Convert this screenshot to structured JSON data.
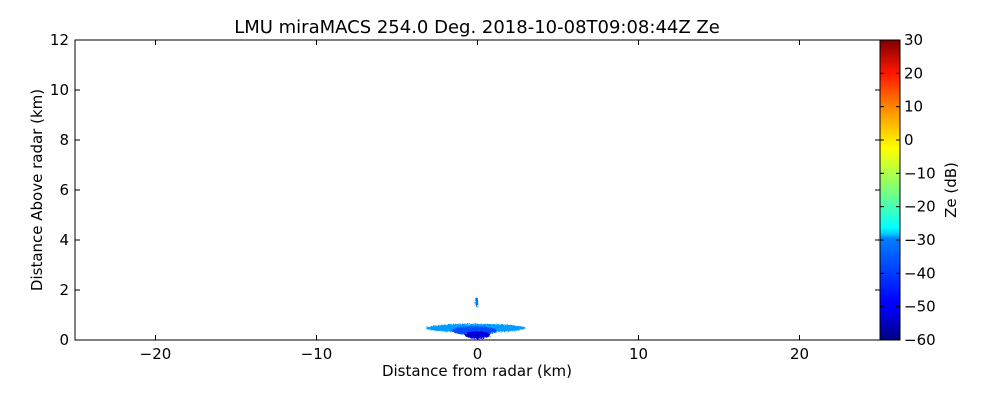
{
  "chart_data": {
    "type": "heatmap",
    "title": "LMU miraMACS 254.0 Deg. 2018-10-08T09:08:44Z  Ze",
    "xlabel": "Distance from radar (km)",
    "ylabel": "Distance Above radar  (km)",
    "xlim": [
      -25,
      25
    ],
    "ylim": [
      0,
      12
    ],
    "xticks": [
      -20,
      -10,
      0,
      10,
      20
    ],
    "xtick_labels": [
      "−20",
      "−10",
      "0",
      "10",
      "20"
    ],
    "yticks": [
      0,
      2,
      4,
      6,
      8,
      10,
      12
    ],
    "ytick_labels": [
      "0",
      "2",
      "4",
      "6",
      "8",
      "10",
      "12"
    ],
    "grid": false,
    "colorbar": {
      "label": "Ze (dB)",
      "range": [
        -60,
        30
      ],
      "colormap": "jet",
      "ticks": [
        30,
        20,
        10,
        0,
        -10,
        -20,
        -30,
        -40,
        -50,
        -60
      ],
      "tick_labels": [
        "30",
        "20",
        "10",
        "0",
        "−10",
        "−20",
        "−30",
        "−40",
        "−50",
        "−60"
      ]
    },
    "echo_regions": [
      {
        "x": [
          -3.2,
          3.0
        ],
        "y": [
          0.3,
          0.65
        ],
        "ze_dB": -35
      },
      {
        "x": [
          -1.6,
          1.2
        ],
        "y": [
          0.2,
          0.55
        ],
        "ze_dB": -42
      },
      {
        "x": [
          -0.8,
          0.8
        ],
        "y": [
          0.05,
          0.35
        ],
        "ze_dB": -52
      },
      {
        "x": [
          -0.15,
          0.05
        ],
        "y": [
          1.3,
          1.7
        ],
        "ze_dB": -38
      }
    ]
  }
}
